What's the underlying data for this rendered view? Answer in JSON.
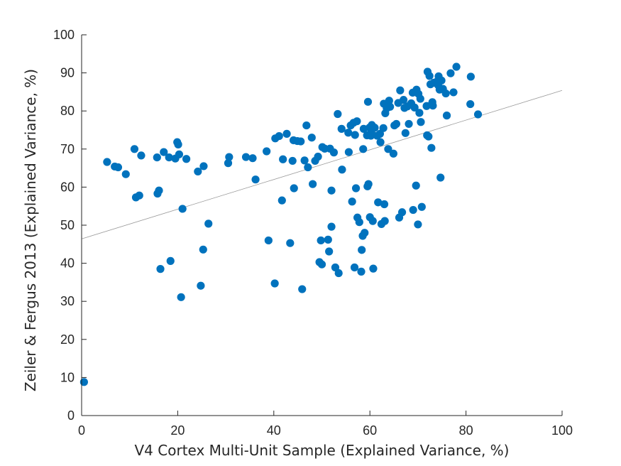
{
  "chart_data": {
    "type": "scatter",
    "title": "",
    "xlabel": "V4 Cortex Multi-Unit Sample (Explained Variance, %)",
    "ylabel": "Zeiler & Fergus 2013 (Explained Variance, %)",
    "xlim": [
      0,
      100
    ],
    "ylim": [
      0,
      100
    ],
    "xticks": [
      0,
      20,
      40,
      60,
      80,
      100
    ],
    "yticks": [
      0,
      10,
      20,
      30,
      40,
      50,
      60,
      70,
      80,
      90,
      100
    ],
    "grid": false,
    "marker_color": "#0072BD",
    "fit_line": {
      "color": "#9a9a9a",
      "intercept": 46.4,
      "slope": 0.39
    },
    "points": [
      [
        0.5,
        8.8
      ],
      [
        5.3,
        66.6
      ],
      [
        6.9,
        65.4
      ],
      [
        7.6,
        65.2
      ],
      [
        9.2,
        63.4
      ],
      [
        11.0,
        70.0
      ],
      [
        11.3,
        57.3
      ],
      [
        12.0,
        57.8
      ],
      [
        12.4,
        68.3
      ],
      [
        15.7,
        67.8
      ],
      [
        15.8,
        58.3
      ],
      [
        16.1,
        59.1
      ],
      [
        16.4,
        38.5
      ],
      [
        17.1,
        69.2
      ],
      [
        18.2,
        67.8
      ],
      [
        18.5,
        40.6
      ],
      [
        19.5,
        67.5
      ],
      [
        19.9,
        71.8
      ],
      [
        20.1,
        71.2
      ],
      [
        20.3,
        68.6
      ],
      [
        20.7,
        31.1
      ],
      [
        21.0,
        54.3
      ],
      [
        21.8,
        67.4
      ],
      [
        24.2,
        64.1
      ],
      [
        24.8,
        34.1
      ],
      [
        25.3,
        43.6
      ],
      [
        25.4,
        65.5
      ],
      [
        26.4,
        50.4
      ],
      [
        30.5,
        66.3
      ],
      [
        30.7,
        67.9
      ],
      [
        34.2,
        67.9
      ],
      [
        35.6,
        67.6
      ],
      [
        36.2,
        62.0
      ],
      [
        38.5,
        69.4
      ],
      [
        38.9,
        46.0
      ],
      [
        40.2,
        34.7
      ],
      [
        40.3,
        72.8
      ],
      [
        41.1,
        73.4
      ],
      [
        41.7,
        56.5
      ],
      [
        41.9,
        67.3
      ],
      [
        42.7,
        74.0
      ],
      [
        43.4,
        45.3
      ],
      [
        43.9,
        66.9
      ],
      [
        44.1,
        72.3
      ],
      [
        44.2,
        59.7
      ],
      [
        44.9,
        72.1
      ],
      [
        45.6,
        72.0
      ],
      [
        45.9,
        33.2
      ],
      [
        46.4,
        67.0
      ],
      [
        46.8,
        76.2
      ],
      [
        47.1,
        65.2
      ],
      [
        47.9,
        73.0
      ],
      [
        48.1,
        60.8
      ],
      [
        48.6,
        66.9
      ],
      [
        49.2,
        68.0
      ],
      [
        49.5,
        40.3
      ],
      [
        49.8,
        46.0
      ],
      [
        50.0,
        39.7
      ],
      [
        50.1,
        70.5
      ],
      [
        50.6,
        70.1
      ],
      [
        51.3,
        46.2
      ],
      [
        51.5,
        43.1
      ],
      [
        51.7,
        70.1
      ],
      [
        52.0,
        59.1
      ],
      [
        52.0,
        49.6
      ],
      [
        52.5,
        69.1
      ],
      [
        52.8,
        38.9
      ],
      [
        53.3,
        79.2
      ],
      [
        53.5,
        37.4
      ],
      [
        54.1,
        75.3
      ],
      [
        54.2,
        64.6
      ],
      [
        55.5,
        74.3
      ],
      [
        55.6,
        69.2
      ],
      [
        56.0,
        76.2
      ],
      [
        56.3,
        56.2
      ],
      [
        56.6,
        76.9
      ],
      [
        56.8,
        38.9
      ],
      [
        56.9,
        73.7
      ],
      [
        57.1,
        59.7
      ],
      [
        57.3,
        77.3
      ],
      [
        57.4,
        52.0
      ],
      [
        57.8,
        50.8
      ],
      [
        58.2,
        37.8
      ],
      [
        58.3,
        43.5
      ],
      [
        58.5,
        47.2
      ],
      [
        58.6,
        70.0
      ],
      [
        58.7,
        75.3
      ],
      [
        58.9,
        48.0
      ],
      [
        59.4,
        73.6
      ],
      [
        59.5,
        60.2
      ],
      [
        59.6,
        82.4
      ],
      [
        59.7,
        60.8
      ],
      [
        59.9,
        75.6
      ],
      [
        60.0,
        52.1
      ],
      [
        60.1,
        75.5
      ],
      [
        60.2,
        73.5
      ],
      [
        60.3,
        74.3
      ],
      [
        60.4,
        76.3
      ],
      [
        60.6,
        51.1
      ],
      [
        60.7,
        38.6
      ],
      [
        61.0,
        75.6
      ],
      [
        61.5,
        73.5
      ],
      [
        61.7,
        56.0
      ],
      [
        62.1,
        74.0
      ],
      [
        62.2,
        71.8
      ],
      [
        62.4,
        50.3
      ],
      [
        62.8,
        75.5
      ],
      [
        62.9,
        81.9
      ],
      [
        63.0,
        55.5
      ],
      [
        63.1,
        51.1
      ],
      [
        63.2,
        79.4
      ],
      [
        63.5,
        80.7
      ],
      [
        63.8,
        70.0
      ],
      [
        64.0,
        82.7
      ],
      [
        64.2,
        81.1
      ],
      [
        64.9,
        68.8
      ],
      [
        65.1,
        76.2
      ],
      [
        65.5,
        76.6
      ],
      [
        65.9,
        82.1
      ],
      [
        66.1,
        52.0
      ],
      [
        66.3,
        85.4
      ],
      [
        66.7,
        53.4
      ],
      [
        67.0,
        82.9
      ],
      [
        67.2,
        80.8
      ],
      [
        67.4,
        74.2
      ],
      [
        67.8,
        81.2
      ],
      [
        68.1,
        76.6
      ],
      [
        68.6,
        82.0
      ],
      [
        68.9,
        84.8
      ],
      [
        69.0,
        54.0
      ],
      [
        69.3,
        80.9
      ],
      [
        69.6,
        60.4
      ],
      [
        69.7,
        85.6
      ],
      [
        70.0,
        50.2
      ],
      [
        70.1,
        84.5
      ],
      [
        70.3,
        79.5
      ],
      [
        70.5,
        83.2
      ],
      [
        70.6,
        77.1
      ],
      [
        70.8,
        54.8
      ],
      [
        71.8,
        81.3
      ],
      [
        71.9,
        73.6
      ],
      [
        72.0,
        90.3
      ],
      [
        72.2,
        73.3
      ],
      [
        72.4,
        89.2
      ],
      [
        72.6,
        87.0
      ],
      [
        72.8,
        70.3
      ],
      [
        73.0,
        82.3
      ],
      [
        73.1,
        81.4
      ],
      [
        73.3,
        87.4
      ],
      [
        73.8,
        87.6
      ],
      [
        74.2,
        86.8
      ],
      [
        74.3,
        89.1
      ],
      [
        74.5,
        85.6
      ],
      [
        74.7,
        62.5
      ],
      [
        74.9,
        88.0
      ],
      [
        75.2,
        85.8
      ],
      [
        75.8,
        84.6
      ],
      [
        76.0,
        78.8
      ],
      [
        76.8,
        89.9
      ],
      [
        77.4,
        84.9
      ],
      [
        78.0,
        91.6
      ],
      [
        80.9,
        81.8
      ],
      [
        81.0,
        89.0
      ],
      [
        82.5,
        79.1
      ]
    ]
  }
}
